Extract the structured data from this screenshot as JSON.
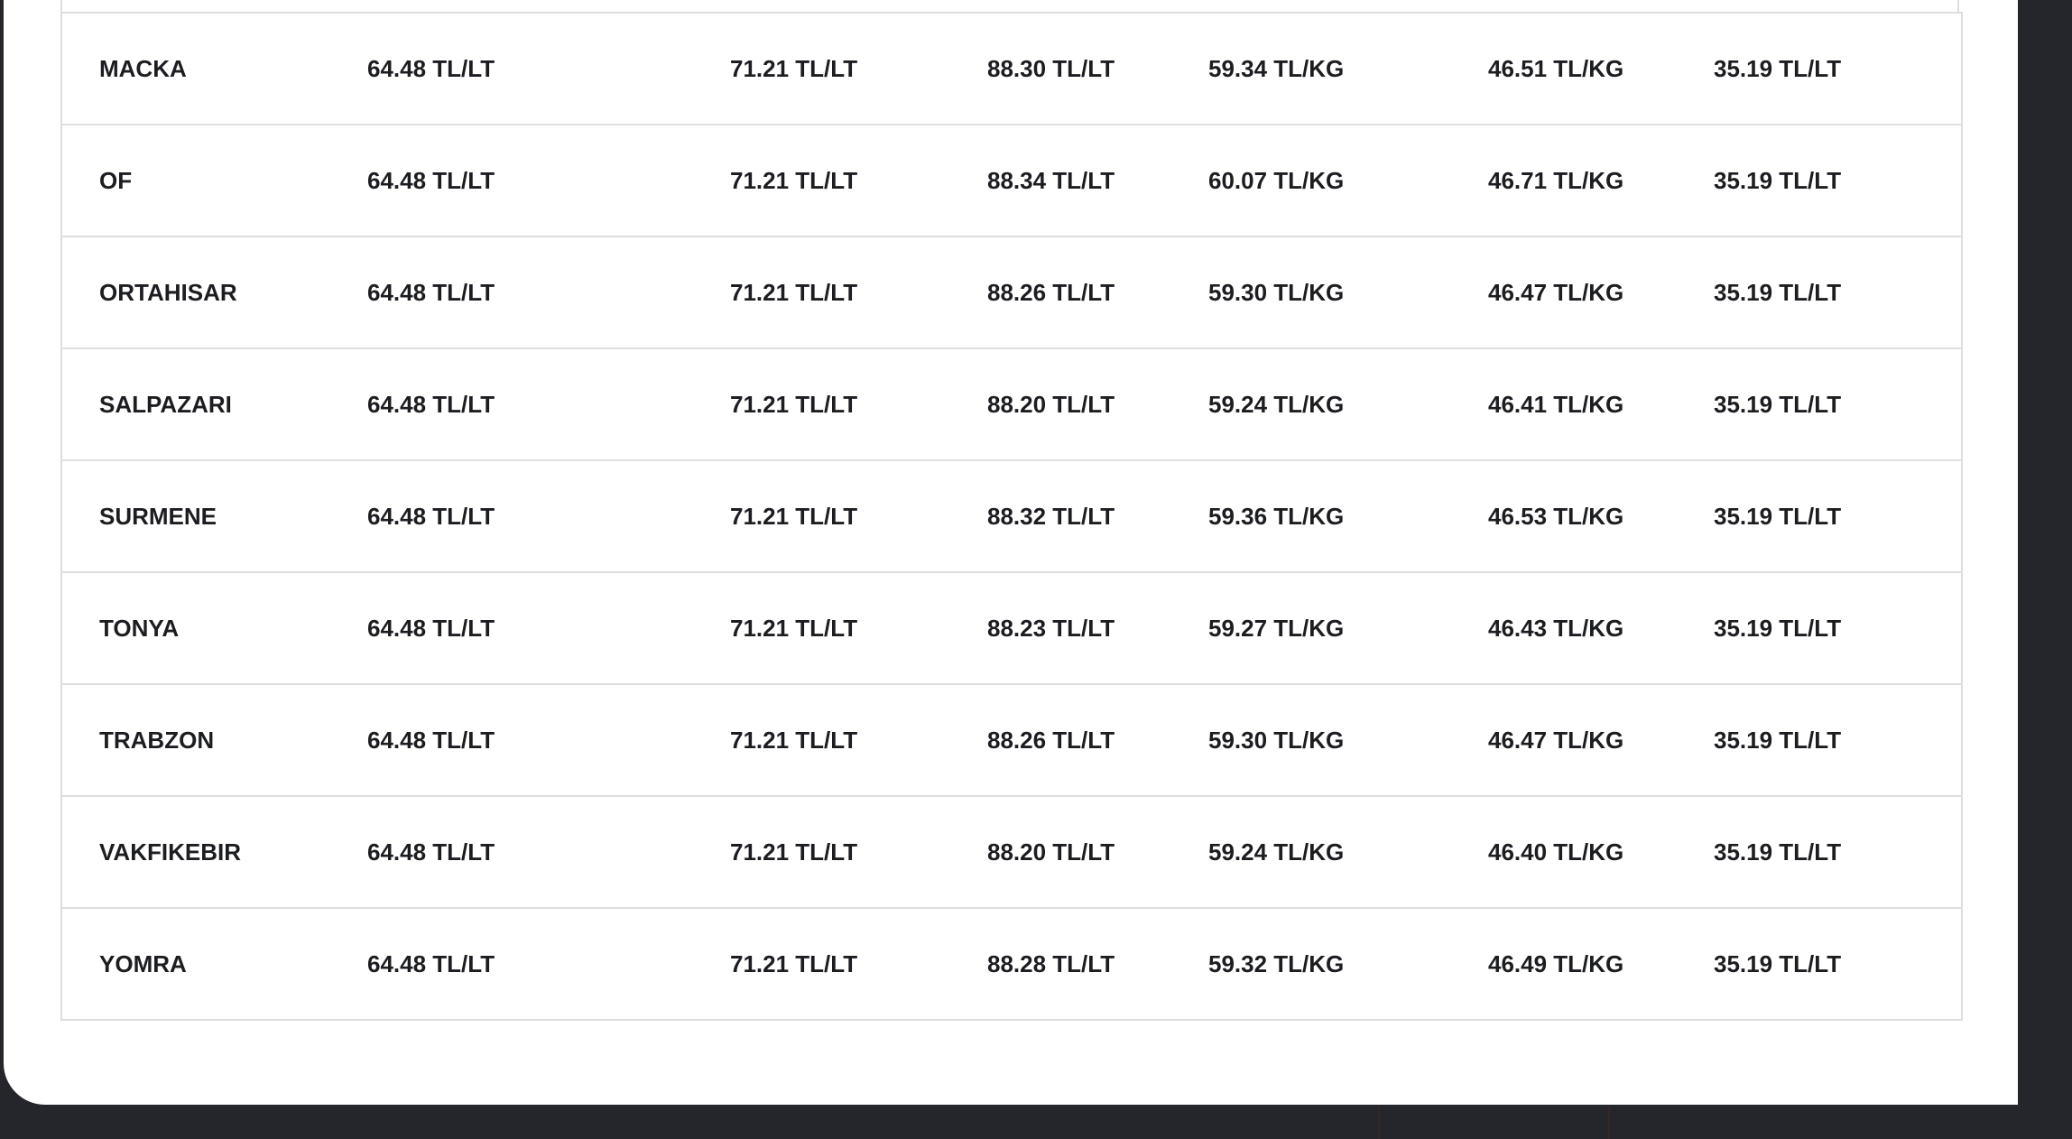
{
  "table": {
    "rows": [
      {
        "district": "MACKA",
        "c1": "64.48 TL/LT",
        "c2": "71.21 TL/LT",
        "c3": "88.30 TL/LT",
        "c4": "59.34 TL/KG",
        "c5": "46.51 TL/KG",
        "c6": "35.19 TL/LT"
      },
      {
        "district": "OF",
        "c1": "64.48 TL/LT",
        "c2": "71.21 TL/LT",
        "c3": "88.34 TL/LT",
        "c4": "60.07 TL/KG",
        "c5": "46.71 TL/KG",
        "c6": "35.19 TL/LT"
      },
      {
        "district": "ORTAHISAR",
        "c1": "64.48 TL/LT",
        "c2": "71.21 TL/LT",
        "c3": "88.26 TL/LT",
        "c4": "59.30 TL/KG",
        "c5": "46.47 TL/KG",
        "c6": "35.19 TL/LT"
      },
      {
        "district": "SALPAZARI",
        "c1": "64.48 TL/LT",
        "c2": "71.21 TL/LT",
        "c3": "88.20 TL/LT",
        "c4": "59.24 TL/KG",
        "c5": "46.41 TL/KG",
        "c6": "35.19 TL/LT"
      },
      {
        "district": "SURMENE",
        "c1": "64.48 TL/LT",
        "c2": "71.21 TL/LT",
        "c3": "88.32 TL/LT",
        "c4": "59.36 TL/KG",
        "c5": "46.53 TL/KG",
        "c6": "35.19 TL/LT"
      },
      {
        "district": "TONYA",
        "c1": "64.48 TL/LT",
        "c2": "71.21 TL/LT",
        "c3": "88.23 TL/LT",
        "c4": "59.27 TL/KG",
        "c5": "46.43 TL/KG",
        "c6": "35.19 TL/LT"
      },
      {
        "district": "TRABZON",
        "c1": "64.48 TL/LT",
        "c2": "71.21 TL/LT",
        "c3": "88.26 TL/LT",
        "c4": "59.30 TL/KG",
        "c5": "46.47 TL/KG",
        "c6": "35.19 TL/LT"
      },
      {
        "district": "VAKFIKEBIR",
        "c1": "64.48 TL/LT",
        "c2": "71.21 TL/LT",
        "c3": "88.20 TL/LT",
        "c4": "59.24 TL/KG",
        "c5": "46.40 TL/KG",
        "c6": "35.19 TL/LT"
      },
      {
        "district": "YOMRA",
        "c1": "64.48 TL/LT",
        "c2": "71.21 TL/LT",
        "c3": "88.28 TL/LT",
        "c4": "59.32 TL/KG",
        "c5": "46.49 TL/KG",
        "c6": "35.19 TL/LT"
      }
    ]
  },
  "colors": {
    "background": "#25262b",
    "card": "#ffffff",
    "border": "#dedede",
    "text": "#1c1d21"
  }
}
